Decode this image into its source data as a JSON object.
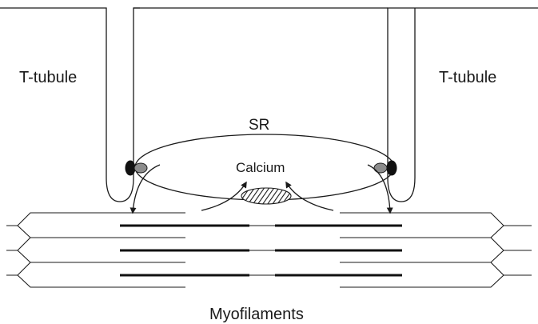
{
  "labels": {
    "t_tubule_left": "T-tubule",
    "t_tubule_right": "T-tubule",
    "sr": "SR",
    "calcium": "Calcium",
    "myofilaments": "Myofilaments"
  },
  "colors": {
    "line": "#1a1a1a",
    "receptor_dark": "#111111",
    "receptor_light": "#8c8c8c",
    "background": "#ffffff"
  }
}
